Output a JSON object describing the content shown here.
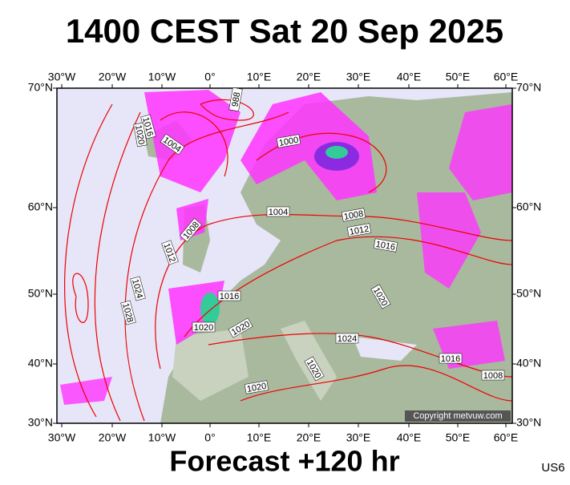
{
  "header": {
    "title": "1400 CEST Sat 20 Sep 2025"
  },
  "longitude_labels": [
    "30°W",
    "20°W",
    "10°W",
    "0°",
    "10°E",
    "20°E",
    "30°E",
    "40°E",
    "50°E",
    "60°E"
  ],
  "latitude_labels": [
    "70°N",
    "60°N",
    "50°N",
    "40°N",
    "30°N"
  ],
  "isobar_labels": [
    "988",
    "1000",
    "1004",
    "1016",
    "1020",
    "1004",
    "1008",
    "1012",
    "1016",
    "1008",
    "1012",
    "1024",
    "1028",
    "1016",
    "1020",
    "1020",
    "1024",
    "1020",
    "1020",
    "1016",
    "1008",
    "1020"
  ],
  "footer": {
    "forecast": "Forecast +120 hr",
    "copyright": "Copyright metvuw.com",
    "code": "US6"
  }
}
